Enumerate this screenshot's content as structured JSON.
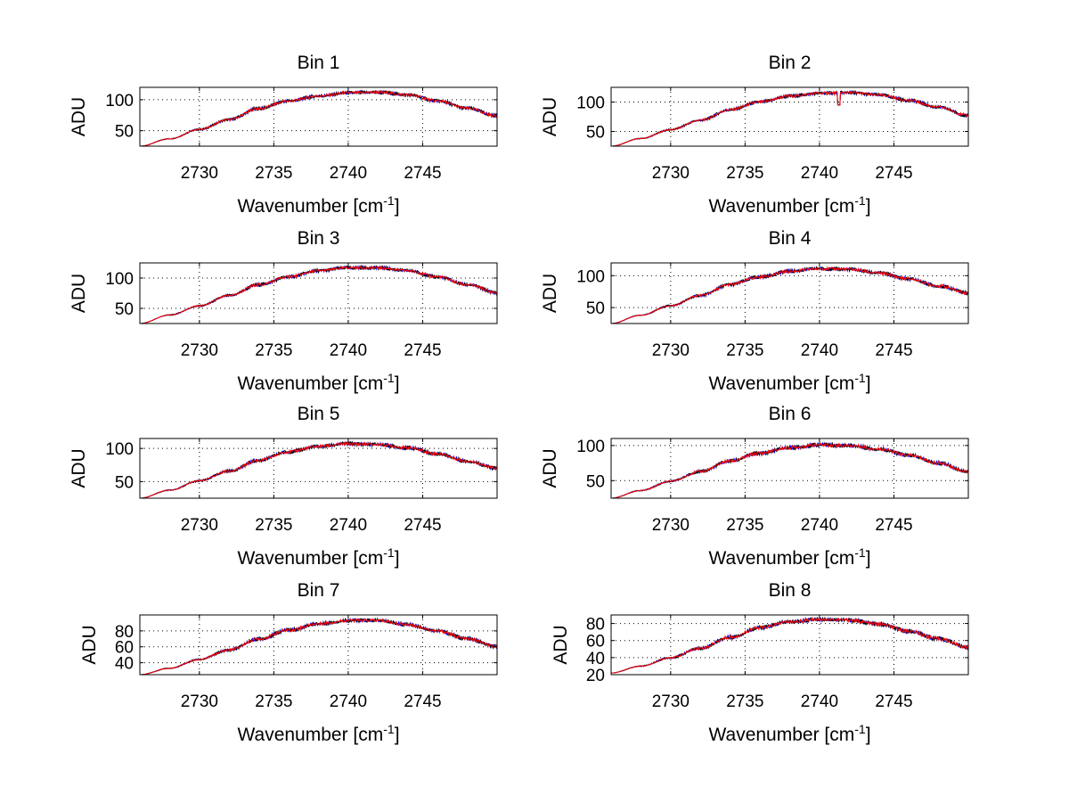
{
  "colors": {
    "background": "#ffffff",
    "series_primary": "#ff0000",
    "series_secondary": "#000000",
    "series_tertiary": "#0000ff"
  },
  "chart_data": [
    {
      "type": "line",
      "title": "Bin 1",
      "xlabel": "Wavenumber [cm",
      "xlabel_sup": "-1",
      "xlabel_end": "]",
      "ylabel": "ADU",
      "xlim": [
        2726,
        2750
      ],
      "ylim": [
        25,
        120
      ],
      "xticks": [
        2730,
        2735,
        2740,
        2745
      ],
      "yticks": [
        50,
        100
      ],
      "x": [
        2726,
        2728,
        2730,
        2732,
        2734,
        2736,
        2738,
        2740,
        2742,
        2744,
        2746,
        2748,
        2750
      ],
      "y": [
        25,
        37,
        52,
        68,
        86,
        98,
        106,
        111,
        112,
        108,
        98,
        86,
        74
      ],
      "noise": 3,
      "spike": null
    },
    {
      "type": "line",
      "title": "Bin 2",
      "xlabel": "Wavenumber [cm",
      "xlabel_sup": "-1",
      "xlabel_end": "]",
      "ylabel": "ADU",
      "xlim": [
        2726,
        2750
      ],
      "ylim": [
        25,
        125
      ],
      "xticks": [
        2730,
        2735,
        2740,
        2745
      ],
      "yticks": [
        50,
        100
      ],
      "x": [
        2726,
        2728,
        2730,
        2732,
        2734,
        2736,
        2738,
        2740,
        2742,
        2744,
        2746,
        2748,
        2750
      ],
      "y": [
        25,
        38,
        53,
        69,
        87,
        100,
        110,
        115,
        116,
        112,
        103,
        91,
        77
      ],
      "noise": 3,
      "spike": [
        2741.3,
        95
      ]
    },
    {
      "type": "line",
      "title": "Bin 3",
      "xlabel": "Wavenumber [cm",
      "xlabel_sup": "-1",
      "xlabel_end": "]",
      "ylabel": "ADU",
      "xlim": [
        2726,
        2750
      ],
      "ylim": [
        25,
        125
      ],
      "xticks": [
        2730,
        2735,
        2740,
        2745
      ],
      "yticks": [
        50,
        100
      ],
      "x": [
        2726,
        2728,
        2730,
        2732,
        2734,
        2736,
        2738,
        2740,
        2742,
        2744,
        2746,
        2748,
        2750
      ],
      "y": [
        25,
        39,
        54,
        71,
        89,
        102,
        112,
        117,
        117,
        112,
        102,
        89,
        76
      ],
      "noise": 3,
      "spike": null
    },
    {
      "type": "line",
      "title": "Bin 4",
      "xlabel": "Wavenumber [cm",
      "xlabel_sup": "-1",
      "xlabel_end": "]",
      "ylabel": "ADU",
      "xlim": [
        2726,
        2750
      ],
      "ylim": [
        25,
        120
      ],
      "xticks": [
        2730,
        2735,
        2740,
        2745
      ],
      "yticks": [
        50,
        100
      ],
      "x": [
        2726,
        2728,
        2730,
        2732,
        2734,
        2736,
        2738,
        2740,
        2742,
        2744,
        2746,
        2748,
        2750
      ],
      "y": [
        25,
        38,
        53,
        69,
        86,
        98,
        107,
        111,
        110,
        104,
        95,
        84,
        73
      ],
      "noise": 3,
      "spike": null
    },
    {
      "type": "line",
      "title": "Bin 5",
      "xlabel": "Wavenumber [cm",
      "xlabel_sup": "-1",
      "xlabel_end": "]",
      "ylabel": "ADU",
      "xlim": [
        2726,
        2750
      ],
      "ylim": [
        25,
        115
      ],
      "xticks": [
        2730,
        2735,
        2740,
        2745
      ],
      "yticks": [
        50,
        100
      ],
      "x": [
        2726,
        2728,
        2730,
        2732,
        2734,
        2736,
        2738,
        2740,
        2742,
        2744,
        2746,
        2748,
        2750
      ],
      "y": [
        25,
        37,
        51,
        66,
        82,
        95,
        103,
        107,
        106,
        101,
        92,
        81,
        70
      ],
      "noise": 3,
      "spike": null
    },
    {
      "type": "line",
      "title": "Bin 6",
      "xlabel": "Wavenumber [cm",
      "xlabel_sup": "-1",
      "xlabel_end": "]",
      "ylabel": "ADU",
      "xlim": [
        2726,
        2750
      ],
      "ylim": [
        25,
        110
      ],
      "xticks": [
        2730,
        2735,
        2740,
        2745
      ],
      "yticks": [
        50,
        100
      ],
      "x": [
        2726,
        2728,
        2730,
        2732,
        2734,
        2736,
        2738,
        2740,
        2742,
        2744,
        2746,
        2748,
        2750
      ],
      "y": [
        25,
        36,
        49,
        63,
        78,
        89,
        97,
        101,
        100,
        95,
        86,
        75,
        63
      ],
      "noise": 3,
      "spike": null
    },
    {
      "type": "line",
      "title": "Bin 7",
      "xlabel": "Wavenumber [cm",
      "xlabel_sup": "-1",
      "xlabel_end": "]",
      "ylabel": "ADU",
      "xlim": [
        2726,
        2750
      ],
      "ylim": [
        25,
        100
      ],
      "xticks": [
        2730,
        2735,
        2740,
        2745
      ],
      "yticks": [
        40,
        60,
        80
      ],
      "x": [
        2726,
        2728,
        2730,
        2732,
        2734,
        2736,
        2738,
        2740,
        2742,
        2744,
        2746,
        2748,
        2750
      ],
      "y": [
        25,
        33,
        44,
        56,
        70,
        81,
        89,
        93,
        93,
        88,
        80,
        70,
        60
      ],
      "noise": 2.5,
      "spike": null
    },
    {
      "type": "line",
      "title": "Bin 8",
      "xlabel": "Wavenumber [cm",
      "xlabel_sup": "-1",
      "xlabel_end": "]",
      "ylabel": "ADU",
      "xlim": [
        2726,
        2750
      ],
      "ylim": [
        20,
        90
      ],
      "xticks": [
        2730,
        2735,
        2740,
        2745
      ],
      "yticks": [
        20,
        40,
        60,
        80
      ],
      "x": [
        2726,
        2728,
        2730,
        2732,
        2734,
        2736,
        2738,
        2740,
        2742,
        2744,
        2746,
        2748,
        2750
      ],
      "y": [
        22,
        30,
        40,
        51,
        64,
        75,
        82,
        85,
        84,
        79,
        71,
        62,
        52
      ],
      "noise": 2.5,
      "spike": null
    }
  ]
}
